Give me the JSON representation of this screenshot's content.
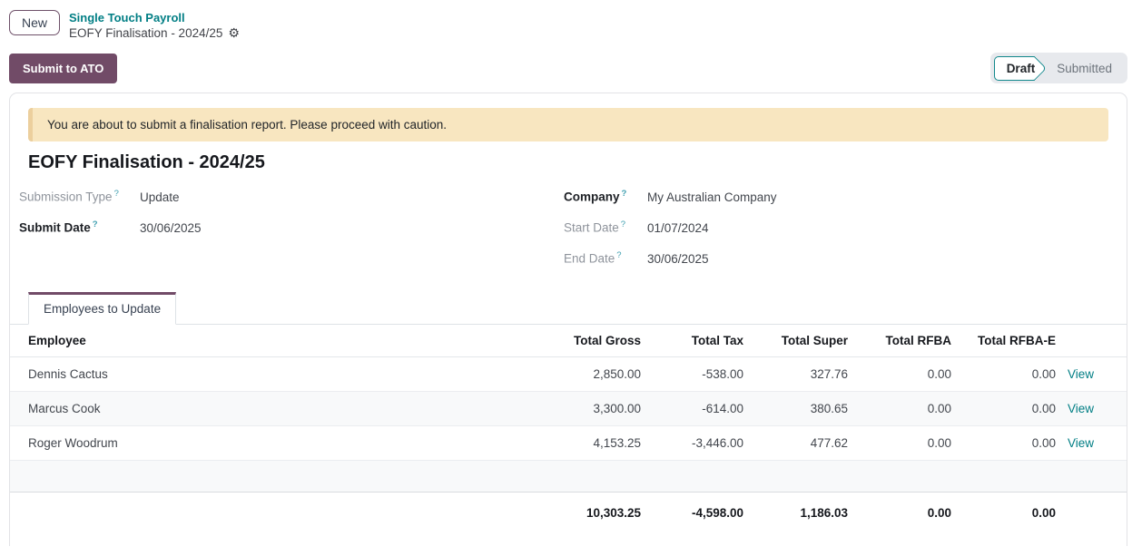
{
  "colors": {
    "accent": "#714B67",
    "link": "#017E84",
    "warning_bg": "#F8E6C0",
    "status_teal": "#12888C"
  },
  "breadcrumb": {
    "new_button": "New",
    "parent": "Single Touch Payroll",
    "current": "EOFY Finalisation - 2024/25",
    "settings_icon": "⚙"
  },
  "toolbar": {
    "submit_button": "Submit to ATO"
  },
  "statusbar": {
    "active_state": "Draft",
    "next_state": "Submitted"
  },
  "banner": {
    "message": "You are about to submit a finalisation report. Please proceed with caution."
  },
  "form": {
    "title": "EOFY Finalisation - 2024/25",
    "help_marker": "?",
    "submission_type": {
      "label": "Submission Type",
      "value": "Update"
    },
    "submit_date": {
      "label": "Submit Date",
      "value": "30/06/2025"
    },
    "company": {
      "label": "Company",
      "value": "My Australian Company"
    },
    "start_date": {
      "label": "Start Date",
      "value": "01/07/2024"
    },
    "end_date": {
      "label": "End Date",
      "value": "30/06/2025"
    }
  },
  "notebook": {
    "active_tab": "Employees to Update"
  },
  "table": {
    "headers": {
      "employee": "Employee",
      "gross": "Total Gross",
      "tax": "Total Tax",
      "super": "Total Super",
      "rfba": "Total RFBA",
      "rfbae": "Total RFBA-E"
    },
    "rows": [
      {
        "employee": "Dennis Cactus",
        "gross": "2,850.00",
        "tax": "-538.00",
        "super": "327.76",
        "rfba": "0.00",
        "rfbae": "0.00",
        "action": "View"
      },
      {
        "employee": "Marcus Cook",
        "gross": "3,300.00",
        "tax": "-614.00",
        "super": "380.65",
        "rfba": "0.00",
        "rfbae": "0.00",
        "action": "View"
      },
      {
        "employee": "Roger Woodrum",
        "gross": "4,153.25",
        "tax": "-3,446.00",
        "super": "477.62",
        "rfba": "0.00",
        "rfbae": "0.00",
        "action": "View"
      }
    ],
    "totals": {
      "gross": "10,303.25",
      "tax": "-4,598.00",
      "super": "1,186.03",
      "rfba": "0.00",
      "rfbae": "0.00"
    }
  }
}
